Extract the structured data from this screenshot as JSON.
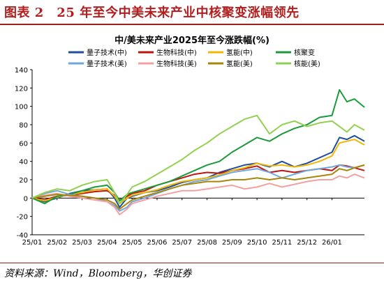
{
  "header": {
    "title": "图表 2　25 年至今中美未来产业中核聚变涨幅领先"
  },
  "source": {
    "text": "资料来源：Wind，Bloomberg，华创证券"
  },
  "colors": {
    "brand_red": "#b01e1e",
    "gridline": "#000000"
  },
  "chart_data": {
    "type": "line",
    "title": "中/美未来产业2025年至今涨跌幅(%)",
    "xlabel": "",
    "ylabel": "",
    "ylim": [
      -40,
      140
    ],
    "yticks": [
      -40,
      -20,
      0,
      20,
      40,
      60,
      80,
      100,
      120,
      140
    ],
    "grid": false,
    "legend_position": "top",
    "x_tick_labels": [
      "25/01",
      "25/02",
      "25/03",
      "25/04",
      "25/05",
      "25/06",
      "25/07",
      "25/08",
      "25/09",
      "25/10",
      "25/11",
      "25/12",
      "26/01"
    ],
    "x": [
      0,
      0.5,
      1,
      1.5,
      2,
      2.5,
      3,
      3.3,
      3.5,
      3.8,
      4,
      4.5,
      5,
      5.5,
      6,
      6.5,
      7,
      7.5,
      8,
      8.5,
      9,
      9.5,
      10,
      10.5,
      11,
      11.5,
      12,
      12.3,
      12.6,
      12.9,
      13.3
    ],
    "series": [
      {
        "name": "量子技术(中)",
        "color": "#1f4e9c",
        "values": [
          0,
          -4,
          0,
          5,
          8,
          9,
          10,
          0,
          -10,
          0,
          2,
          6,
          8,
          12,
          17,
          20,
          22,
          28,
          32,
          36,
          38,
          34,
          40,
          34,
          38,
          44,
          50,
          66,
          64,
          68,
          62
        ]
      },
      {
        "name": "生物科技(中)",
        "color": "#c0150f",
        "values": [
          0,
          -2,
          2,
          3,
          5,
          7,
          8,
          3,
          -2,
          2,
          5,
          8,
          14,
          18,
          22,
          26,
          28,
          27,
          30,
          32,
          35,
          28,
          30,
          28,
          30,
          32,
          30,
          36,
          35,
          33,
          30
        ]
      },
      {
        "name": "氢能(中)",
        "color": "#f2b705",
        "values": [
          0,
          -3,
          1,
          4,
          6,
          9,
          10,
          2,
          -6,
          0,
          3,
          6,
          9,
          14,
          18,
          20,
          22,
          25,
          30,
          33,
          38,
          35,
          36,
          34,
          36,
          40,
          46,
          60,
          62,
          64,
          58
        ]
      },
      {
        "name": "核聚变",
        "color": "#1a9a3a",
        "values": [
          0,
          -6,
          2,
          4,
          8,
          12,
          14,
          6,
          -3,
          4,
          6,
          10,
          14,
          18,
          24,
          30,
          36,
          40,
          50,
          58,
          66,
          62,
          70,
          76,
          80,
          88,
          90,
          118,
          105,
          108,
          99
        ]
      },
      {
        "name": "量子技术(美)",
        "color": "#6fa8dc",
        "values": [
          0,
          5,
          8,
          4,
          2,
          0,
          -4,
          -8,
          -14,
          -10,
          -4,
          0,
          5,
          10,
          14,
          18,
          20,
          24,
          28,
          30,
          32,
          28,
          22,
          26,
          30,
          32,
          34,
          36,
          34,
          33,
          36
        ]
      },
      {
        "name": "生物科技(美)",
        "color": "#f4a0a0",
        "values": [
          0,
          3,
          5,
          2,
          0,
          -2,
          -4,
          -10,
          -18,
          -12,
          -6,
          -2,
          2,
          5,
          8,
          8,
          10,
          12,
          14,
          10,
          12,
          16,
          12,
          15,
          18,
          20,
          20,
          24,
          22,
          26,
          22
        ]
      },
      {
        "name": "氢能(美)",
        "color": "#a8860a",
        "values": [
          0,
          2,
          4,
          3,
          2,
          0,
          -2,
          -6,
          -12,
          -6,
          -2,
          2,
          6,
          10,
          14,
          16,
          18,
          18,
          20,
          20,
          22,
          20,
          22,
          20,
          22,
          24,
          26,
          32,
          30,
          33,
          36
        ]
      },
      {
        "name": "核能(美)",
        "color": "#92d050",
        "values": [
          0,
          6,
          10,
          8,
          14,
          18,
          20,
          6,
          -6,
          4,
          12,
          18,
          26,
          34,
          42,
          52,
          60,
          70,
          78,
          86,
          90,
          70,
          80,
          84,
          78,
          82,
          84,
          78,
          72,
          80,
          74
        ]
      }
    ]
  }
}
